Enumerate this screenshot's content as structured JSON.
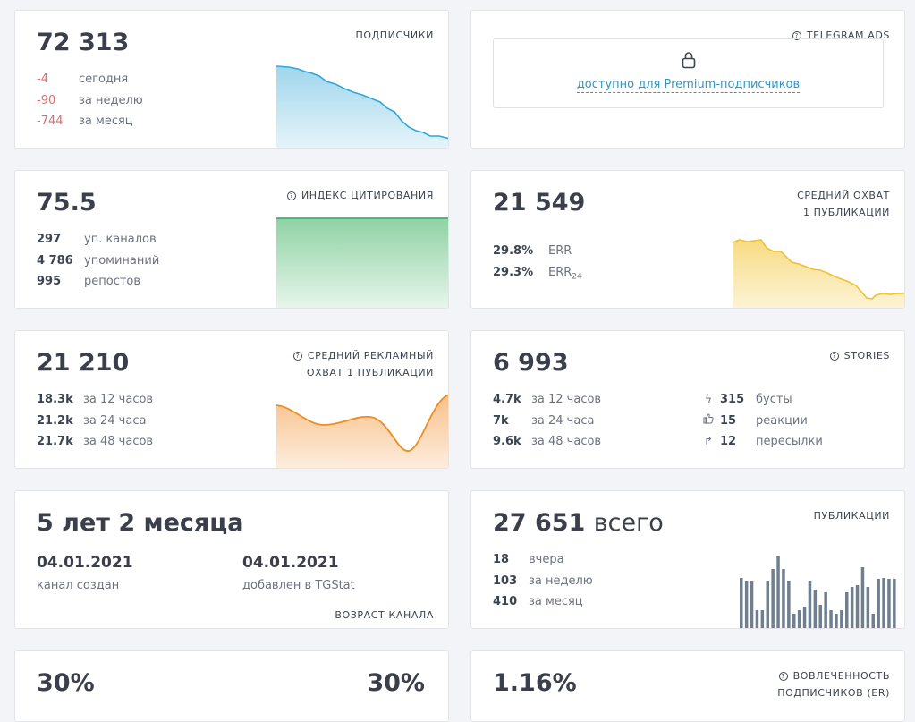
{
  "subscribers": {
    "label": "ПОДПИСЧИКИ",
    "value": "72 313",
    "rows": [
      {
        "value": "-4",
        "text": "сегодня"
      },
      {
        "value": "-90",
        "text": "за неделю"
      },
      {
        "value": "-744",
        "text": "за месяц"
      }
    ],
    "color": "#2fa8d5"
  },
  "ads": {
    "label": "TELEGRAM ADS",
    "link": "доступно для Premium-подписчиков"
  },
  "citation": {
    "label": "ИНДЕКС ЦИТИРОВАНИЯ",
    "value": "75.5",
    "rows": [
      {
        "value": "297",
        "text": "уп. каналов"
      },
      {
        "value": "4 786",
        "text": "упоминаний"
      },
      {
        "value": "995",
        "text": "репостов"
      }
    ],
    "color": "#3ab46a"
  },
  "reach": {
    "label1": "СРЕДНИЙ ОХВАТ",
    "label2": "1 ПУБЛИКАЦИИ",
    "value": "21 549",
    "err_value": "29.8%",
    "err_label": "ERR",
    "err24_value": "29.3%",
    "err24_label": "ERR",
    "err24_sub": "24",
    "color": "#f2c12e"
  },
  "ad_reach": {
    "label1": "СРЕДНИЙ РЕКЛАМНЫЙ",
    "label2": "ОХВАТ 1 ПУБЛИКАЦИИ",
    "value": "21 210",
    "rows": [
      {
        "value": "18.3k",
        "text": "за 12 часов"
      },
      {
        "value": "21.2k",
        "text": "за 24 часа"
      },
      {
        "value": "21.7k",
        "text": "за 48 часов"
      }
    ],
    "color": "#f08c1e"
  },
  "stories": {
    "label": "STORIES",
    "value": "6 993",
    "rows": [
      {
        "value": "4.7k",
        "text": "за 12 часов"
      },
      {
        "value": "7k",
        "text": "за 24 часа"
      },
      {
        "value": "9.6k",
        "text": "за 48 часов"
      }
    ],
    "stats": [
      {
        "icon": "boost-icon",
        "glyph": "ϟ",
        "value": "315",
        "text": "бусты"
      },
      {
        "icon": "thumbs-up-icon",
        "glyph": "👍",
        "value": "15",
        "text": "реакции"
      },
      {
        "icon": "forward-icon",
        "glyph": "↱",
        "value": "12",
        "text": "пересылки"
      }
    ]
  },
  "age": {
    "label": "ВОЗРАСТ КАНАЛА",
    "value": "5 лет 2 месяца",
    "created_date": "04.01.2021",
    "created_label": "канал создан",
    "added_date": "04.01.2021",
    "added_label": "добавлен в TGStat"
  },
  "posts": {
    "label": "ПУБЛИКАЦИИ",
    "value": "27 651",
    "value_suffix": "всего",
    "rows": [
      {
        "value": "18",
        "text": "вчера"
      },
      {
        "value": "103",
        "text": "за неделю"
      },
      {
        "value": "410",
        "text": "за месяц"
      }
    ],
    "bar_color": "#6f7f90",
    "bars": [
      58,
      55,
      55,
      22,
      22,
      55,
      68,
      82,
      68,
      55,
      18,
      22,
      26,
      55,
      45,
      28,
      42,
      22,
      18,
      22,
      42,
      48,
      50,
      70,
      48,
      18,
      57,
      58,
      57,
      57
    ]
  },
  "bottom": {
    "left_value": "30%",
    "right_value": "30%",
    "er_value": "1.16%",
    "er_label1": "ВОВЛЕЧЕННОСТЬ",
    "er_label2": "ПОДПИСЧИКОВ (ER)"
  }
}
